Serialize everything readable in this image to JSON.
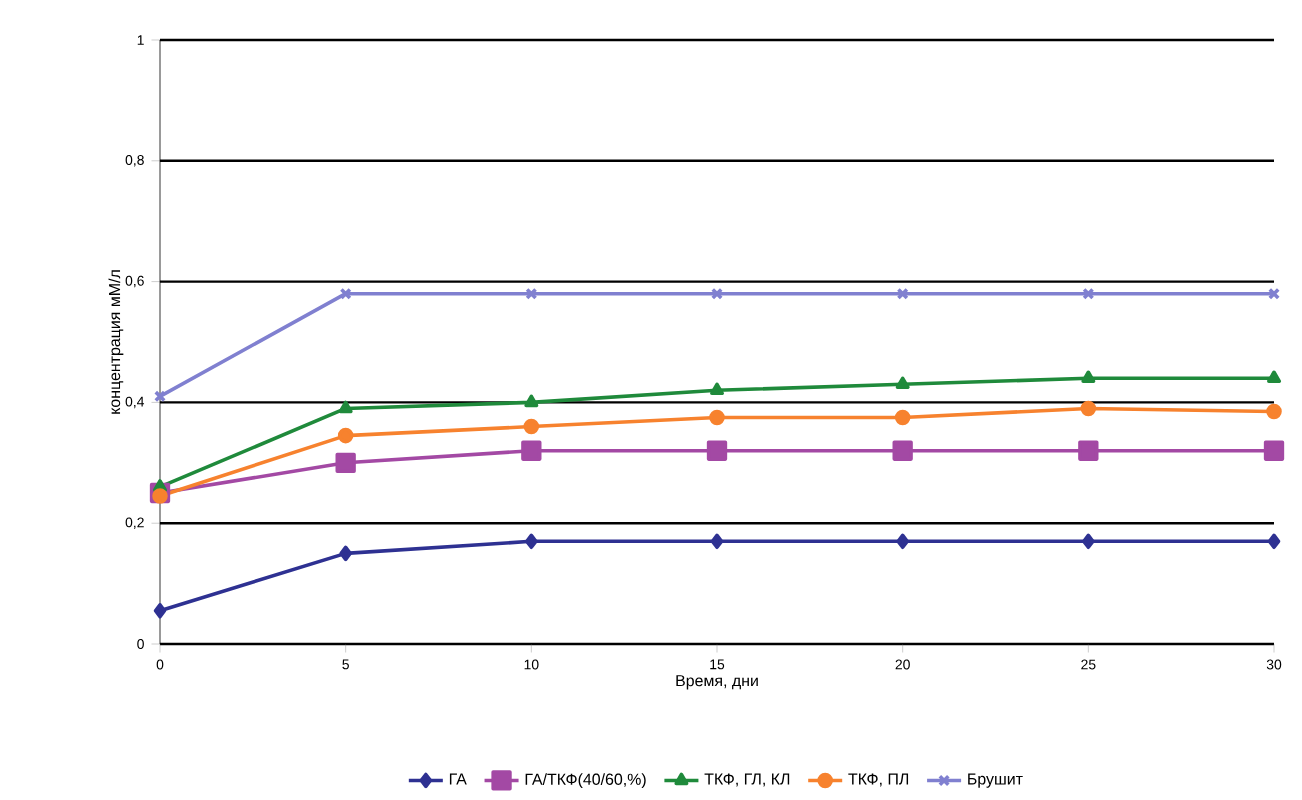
{
  "chart_data": {
    "type": "line",
    "xlabel": "Время, дни",
    "ylabel": "концентрация мМ/л",
    "x": [
      0,
      5,
      10,
      15,
      20,
      25,
      30
    ],
    "series": [
      {
        "name": "ГА",
        "color": "#2e3192",
        "marker": "diamond",
        "values": [
          0.055,
          0.15,
          0.17,
          0.17,
          0.17,
          0.17,
          0.17
        ]
      },
      {
        "name": "ГА/ТКФ(40/60,%)",
        "color": "#a349a4",
        "marker": "square",
        "values": [
          0.25,
          0.3,
          0.32,
          0.32,
          0.32,
          0.32,
          0.32
        ]
      },
      {
        "name": "ТКФ, ГЛ, КЛ",
        "color": "#1f8a3b",
        "marker": "triangle",
        "values": [
          0.26,
          0.39,
          0.4,
          0.42,
          0.43,
          0.44,
          0.44
        ]
      },
      {
        "name": "ТКФ, ПЛ",
        "color": "#f7822e",
        "marker": "circle",
        "values": [
          0.245,
          0.345,
          0.36,
          0.375,
          0.375,
          0.39,
          0.385
        ]
      },
      {
        "name": "Брушит",
        "color": "#8080d0",
        "marker": "cross",
        "values": [
          0.41,
          0.58,
          0.58,
          0.58,
          0.58,
          0.58,
          0.58
        ]
      }
    ],
    "xlim": [
      0,
      30
    ],
    "xticks": [
      0,
      5,
      10,
      15,
      20,
      25,
      30
    ],
    "ylim": [
      0,
      1
    ],
    "yticks": [
      0,
      {
        "value": 0.2,
        "label": "0,2"
      },
      {
        "value": 0.4,
        "label": "0,4"
      },
      {
        "value": 0.6,
        "label": "0,6"
      },
      {
        "value": 0.8,
        "label": "0,8"
      },
      1
    ],
    "grid": "y",
    "legend": "bottom"
  }
}
